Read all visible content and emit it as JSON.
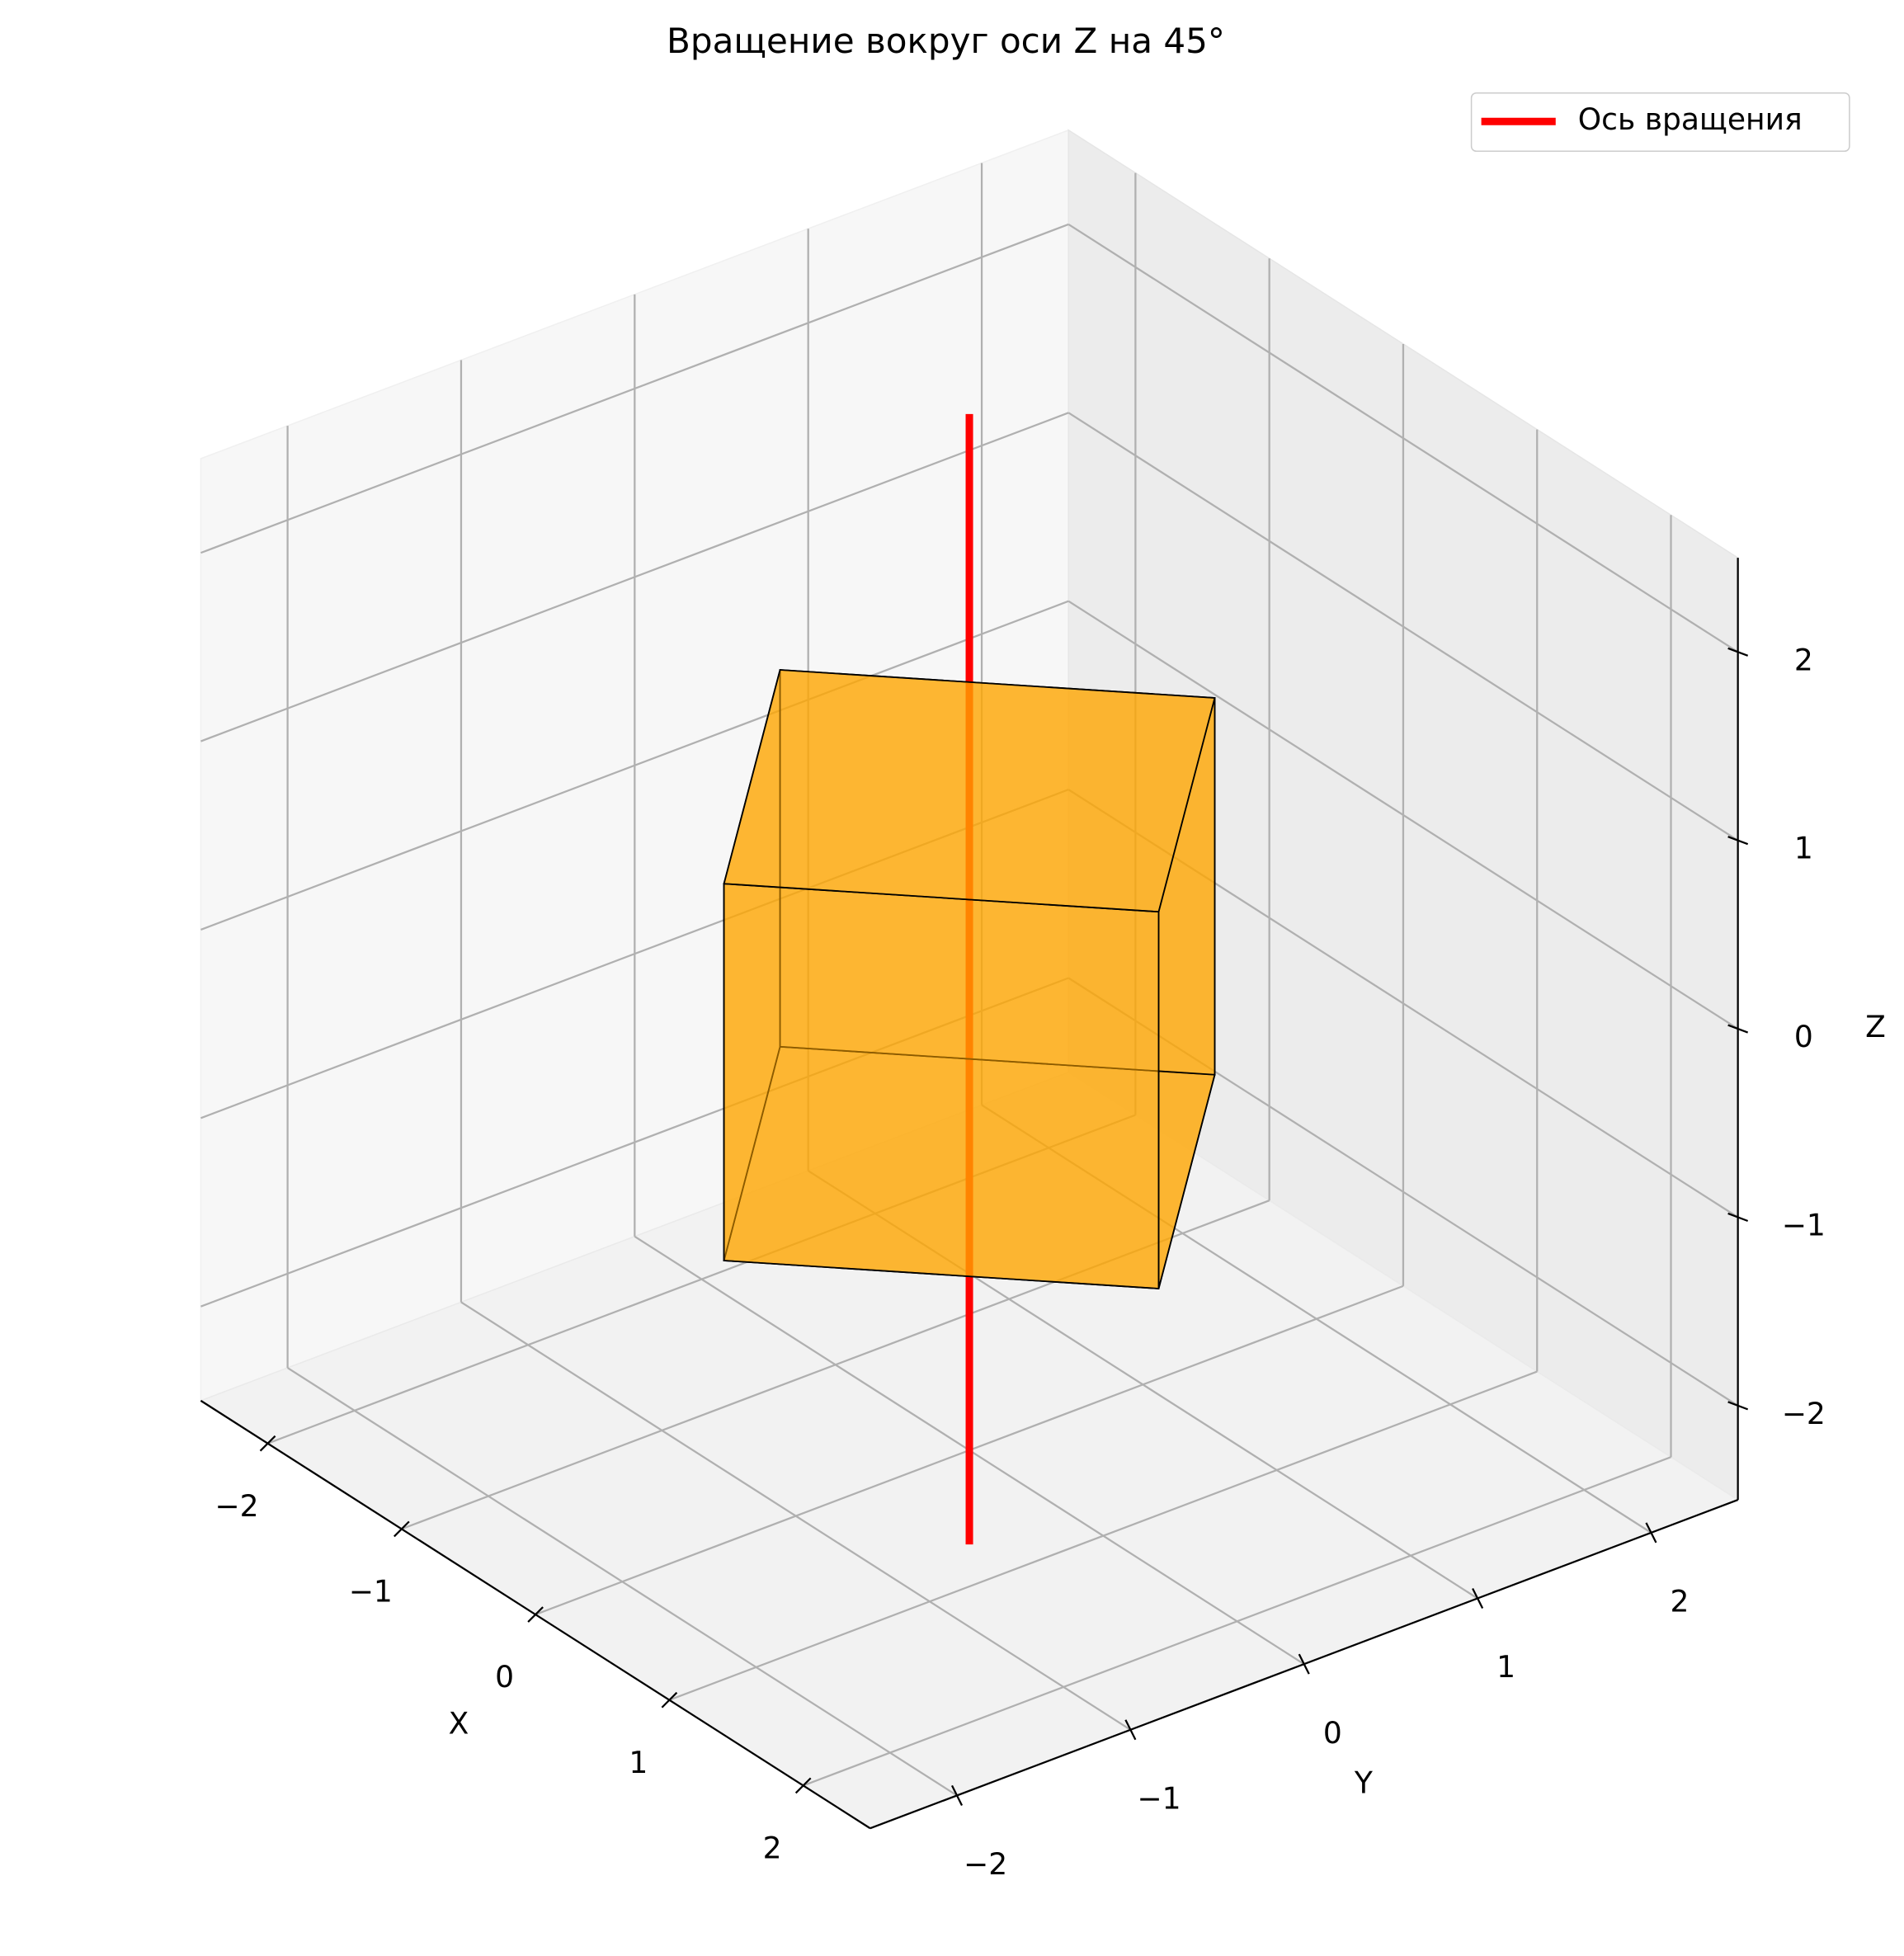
{
  "chart_data": {
    "type": "3d",
    "title": "Вращение вокруг оси Z на 45°",
    "xlabel": "X",
    "ylabel": "Y",
    "zlabel": "Z",
    "xlim": [
      -2.5,
      2.5
    ],
    "ylim": [
      -2.5,
      2.5
    ],
    "zlim": [
      -2.5,
      2.5
    ],
    "xticks": [
      {
        "value": -2,
        "label": "−2"
      },
      {
        "value": -1,
        "label": "−1"
      },
      0,
      1,
      2
    ],
    "yticks": [
      {
        "value": -2,
        "label": "−2"
      },
      {
        "value": -1,
        "label": "−1"
      },
      0,
      1,
      2
    ],
    "zticks": [
      {
        "value": -2,
        "label": "−2"
      },
      {
        "value": -1,
        "label": "−1"
      },
      0,
      1,
      2
    ],
    "grid": true,
    "legend": "upper right",
    "series": [
      {
        "name": "Ось вращения",
        "color": "red",
        "x": [
          0,
          0
        ],
        "y": [
          0,
          0
        ],
        "z": [
          -3,
          3
        ]
      }
    ],
    "surfaces": [
      {
        "color": "orange",
        "edgecolor": "black",
        "vertices": [
          [
            1.414,
            0,
            -1
          ],
          [
            0,
            1.414,
            -1
          ],
          [
            -1.414,
            0,
            -1
          ],
          [
            0,
            -1.414,
            -1
          ],
          [
            1.414,
            0,
            1
          ],
          [
            0,
            1.414,
            1
          ],
          [
            -1.414,
            0,
            1
          ],
          [
            0,
            -1.414,
            1
          ]
        ]
      }
    ]
  }
}
